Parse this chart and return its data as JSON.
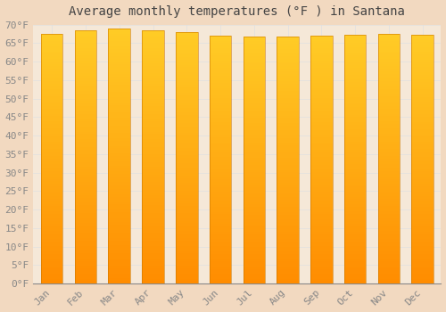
{
  "title": "Average monthly temperatures (°F ) in Santana",
  "months": [
    "Jan",
    "Feb",
    "Mar",
    "Apr",
    "May",
    "Jun",
    "Jul",
    "Aug",
    "Sep",
    "Oct",
    "Nov",
    "Dec"
  ],
  "values": [
    67.5,
    68.5,
    69.0,
    68.5,
    68.0,
    67.0,
    66.8,
    66.8,
    67.0,
    67.2,
    67.5,
    67.3
  ],
  "bar_color": "#FFA500",
  "bar_color_light": "#FFD060",
  "bar_color_dark": "#E8900A",
  "ylim": [
    0,
    70
  ],
  "ytick_step": 5,
  "background_color": "#F2D9C0",
  "plot_bg_color": "#F5E8D8",
  "grid_color": "#E0E0E0",
  "title_fontsize": 10,
  "tick_fontsize": 8,
  "title_color": "#444444",
  "tick_color": "#888888",
  "bar_width": 0.65
}
